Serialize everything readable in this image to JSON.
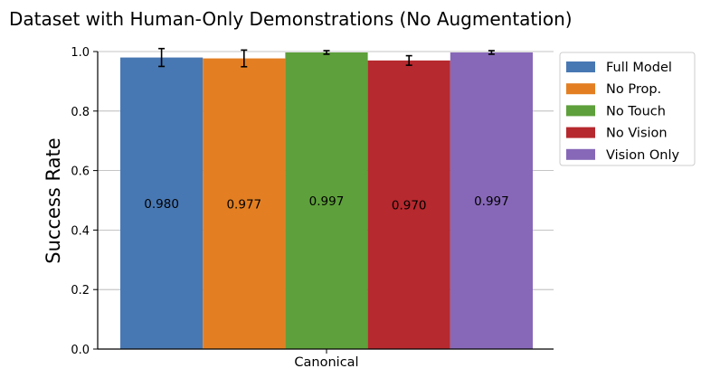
{
  "chart_data": {
    "type": "bar",
    "title": "Dataset with Human-Only Demonstrations (No Augmentation)",
    "xlabel": "",
    "ylabel": "Success Rate",
    "categories": [
      "Canonical"
    ],
    "ylim": [
      0,
      1.0
    ],
    "yticks": [
      "0.0",
      "0.2",
      "0.4",
      "0.6",
      "0.8",
      "1.0"
    ],
    "grid": "horizontal",
    "legend_position": "right-top",
    "series": [
      {
        "name": "Full Model",
        "value": 0.98,
        "label": "0.980",
        "error": 0.03,
        "color": "#4878b3"
      },
      {
        "name": "No Prop.",
        "value": 0.977,
        "label": "0.977",
        "error": 0.028,
        "color": "#e37f22"
      },
      {
        "name": "No Touch",
        "value": 0.997,
        "label": "0.997",
        "error": 0.006,
        "color": "#5ea03b"
      },
      {
        "name": "No Vision",
        "value": 0.97,
        "label": "0.970",
        "error": 0.016,
        "color": "#b6292e"
      },
      {
        "name": "Vision Only",
        "value": 0.997,
        "label": "0.997",
        "error": 0.006,
        "color": "#8768b8"
      }
    ]
  }
}
